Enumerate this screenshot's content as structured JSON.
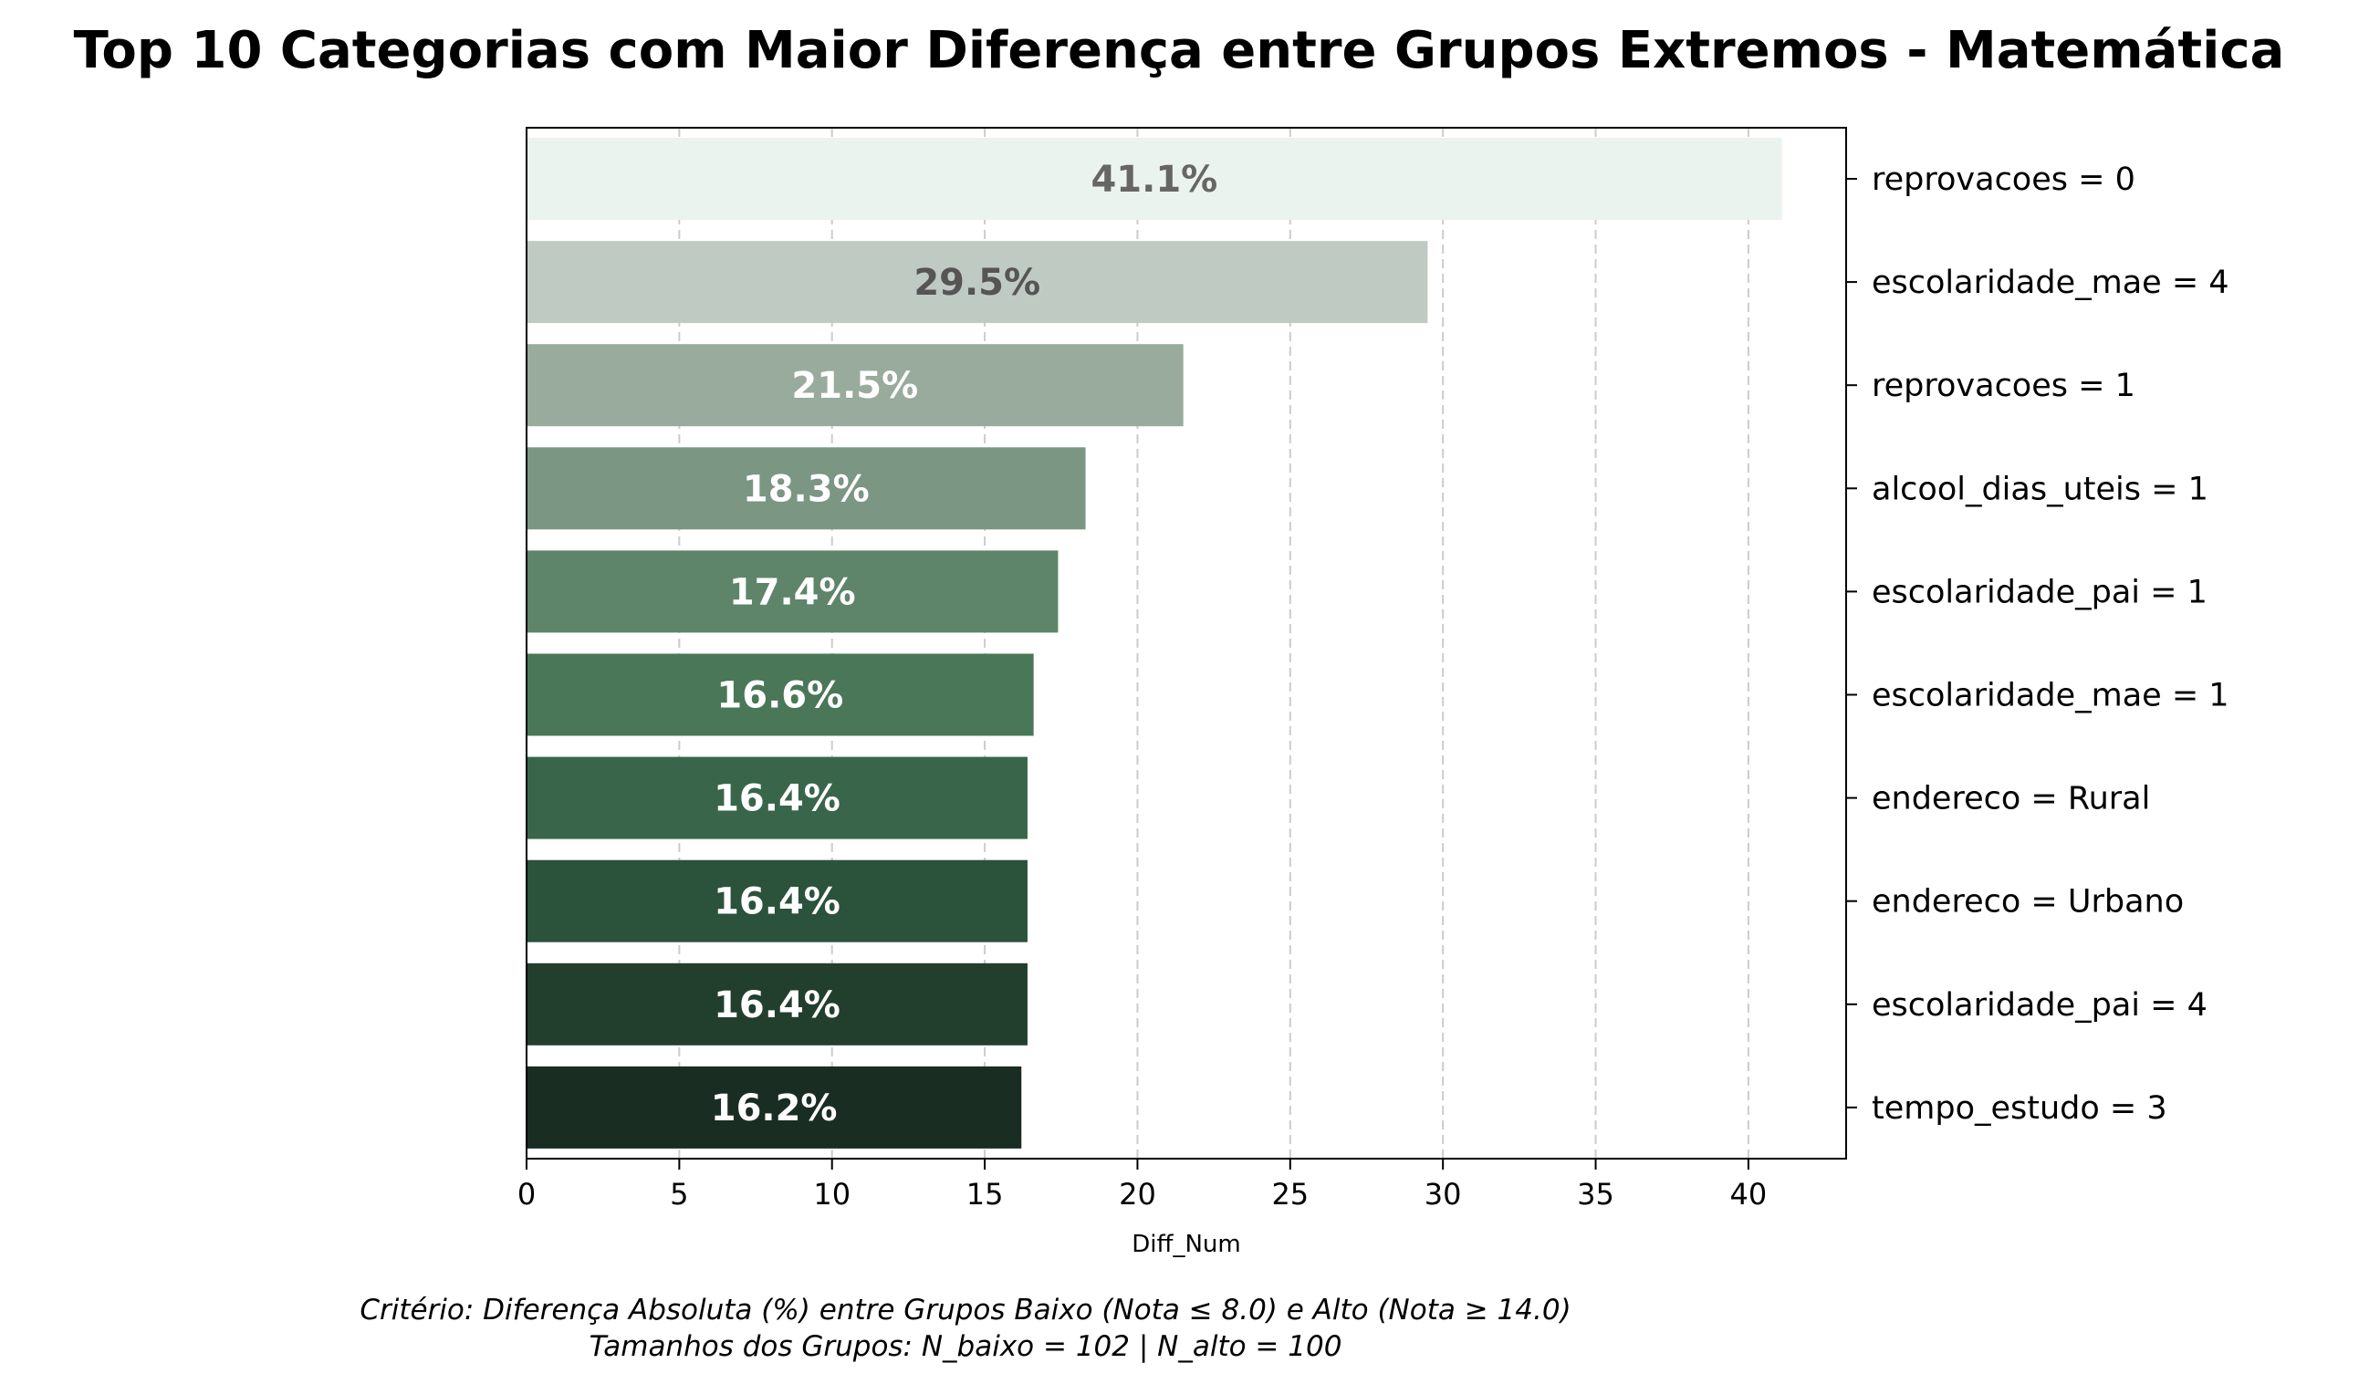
{
  "chart_data": {
    "type": "bar",
    "orientation": "horizontal",
    "title": "Top 10 Categorias com Maior Diferença entre Grupos Extremos - Matemática",
    "xlabel": "Diff_Num",
    "ylabel": "",
    "xlim": [
      0,
      43.2
    ],
    "x_ticks": [
      0,
      5,
      10,
      15,
      20,
      25,
      30,
      35,
      40
    ],
    "grid": "vertical dashed",
    "y_axis_side": "right",
    "categories": [
      "reprovacoes = 0",
      "escolaridade_mae = 4",
      "reprovacoes = 1",
      "alcool_dias_uteis = 1",
      "escolaridade_pai = 1",
      "escolaridade_mae = 1",
      "endereco = Rural",
      "endereco = Urbano",
      "escolaridade_pai = 4",
      "tempo_estudo = 3"
    ],
    "values": [
      41.1,
      29.5,
      21.5,
      18.3,
      17.4,
      16.6,
      16.4,
      16.4,
      16.4,
      16.2
    ],
    "value_labels": [
      "41.1%",
      "29.5%",
      "21.5%",
      "18.3%",
      "17.4%",
      "16.6%",
      "16.4%",
      "16.4%",
      "16.4%",
      "16.2%"
    ],
    "colors": [
      "#ebf3ee",
      "#bfcbc2",
      "#98ab9c",
      "#7b9683",
      "#5e856a",
      "#4a7757",
      "#39654a",
      "#2b523b",
      "#223f2e",
      "#1a2d22"
    ],
    "label_colors": [
      "#666666",
      "#555555",
      "#ffffff",
      "#ffffff",
      "#ffffff",
      "#ffffff",
      "#ffffff",
      "#ffffff",
      "#ffffff",
      "#ffffff"
    ]
  },
  "footnote": {
    "line1": "Critério: Diferença Absoluta (%) entre Grupos Baixo (Nota ≤ 8.0) e Alto (Nota ≥ 14.0)",
    "line2": "Tamanhos dos Grupos: N_baixo = 102 | N_alto = 100"
  }
}
